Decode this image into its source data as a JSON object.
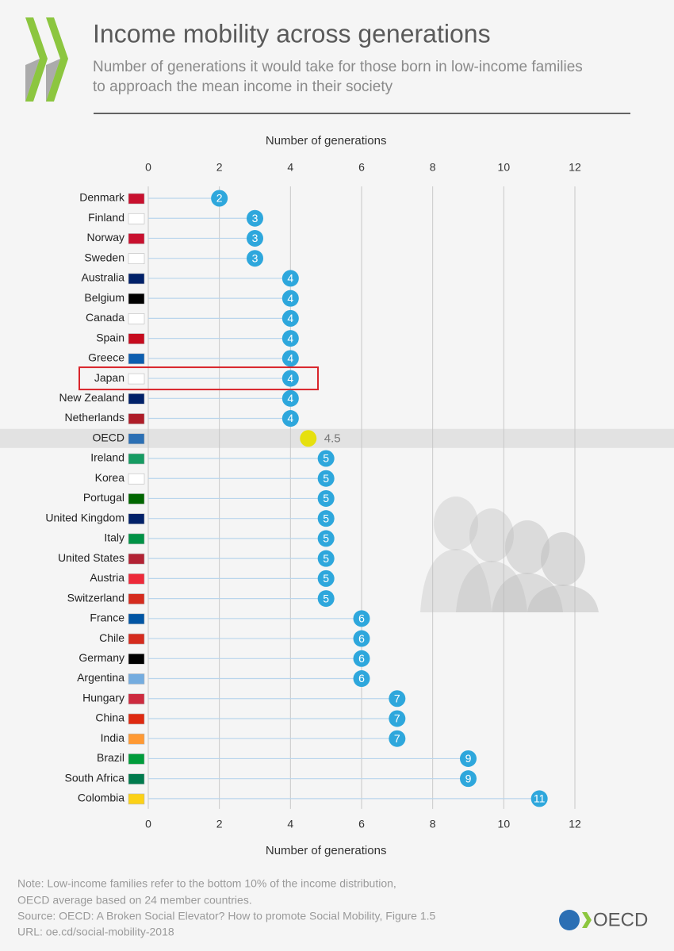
{
  "chart_data": {
    "type": "lollipop",
    "title": "Income mobility across generations",
    "subtitle": [
      "Number of generations it would take for those born in low-income families",
      "to approach the mean income in their society"
    ],
    "xlabel": "Number of generations",
    "categories": [
      "Denmark",
      "Finland",
      "Norway",
      "Sweden",
      "Australia",
      "Belgium",
      "Canada",
      "Spain",
      "Greece",
      "Japan",
      "New Zealand",
      "Netherlands",
      "OECD",
      "Ireland",
      "Korea",
      "Portugal",
      "United Kingdom",
      "Italy",
      "United States",
      "Austria",
      "Switzerland",
      "France",
      "Chile",
      "Germany",
      "Argentina",
      "Hungary",
      "China",
      "India",
      "Brazil",
      "South Africa",
      "Colombia"
    ],
    "values": [
      2,
      3,
      3,
      3,
      4,
      4,
      4,
      4,
      4,
      4,
      4,
      4,
      4.5,
      5,
      5,
      5,
      5,
      5,
      5,
      5,
      5,
      6,
      6,
      6,
      6,
      7,
      7,
      7,
      9,
      9,
      11
    ],
    "color": "#2ea7dc",
    "reference_category": "OECD",
    "reference_color": "#e6e00e",
    "highlight_category": "Japan",
    "highlight_color": "#d9252b",
    "xlim": [
      0,
      12
    ],
    "xticks": [
      0,
      2,
      4,
      6,
      8,
      10,
      12
    ],
    "grid": true,
    "notes": [
      "Note: Low-income families refer to the bottom 10% of the income distribution,",
      "OECD average based on 24 member countries.",
      "Source: OECD: A Broken Social Elevator? How to promote Social Mobility, Figure 1.5",
      "URL: oe.cd/social-mobility-2018"
    ],
    "logo_text": "OECD"
  }
}
